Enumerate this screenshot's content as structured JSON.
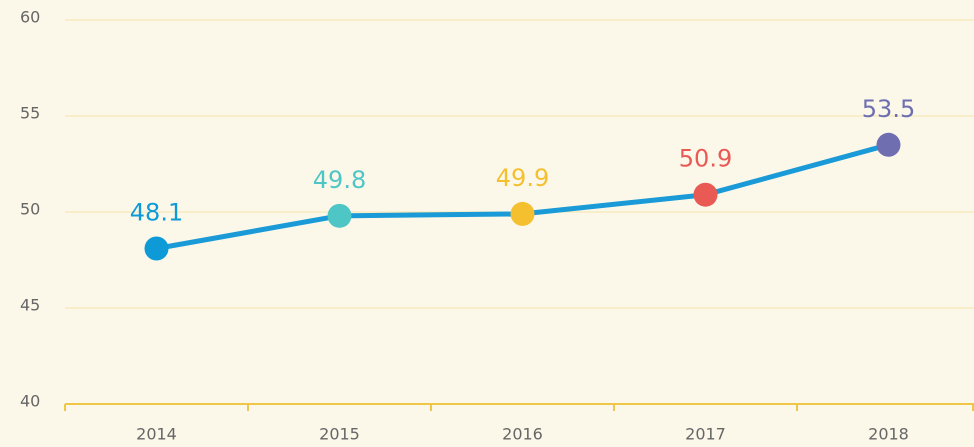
{
  "chart_data": {
    "type": "line",
    "categories": [
      "2014",
      "2015",
      "2016",
      "2017",
      "2018"
    ],
    "series": [
      {
        "color": "#1a9ad6",
        "values": [
          48.1,
          49.8,
          49.9,
          50.9,
          53.5
        ]
      }
    ],
    "point_colors": [
      "#0e9ad7",
      "#4ec6c6",
      "#f5c02f",
      "#e95a55",
      "#6e6eb0"
    ],
    "ylim": [
      40,
      60
    ],
    "yticks": [
      40,
      45,
      50,
      55,
      60
    ],
    "grid": true
  }
}
